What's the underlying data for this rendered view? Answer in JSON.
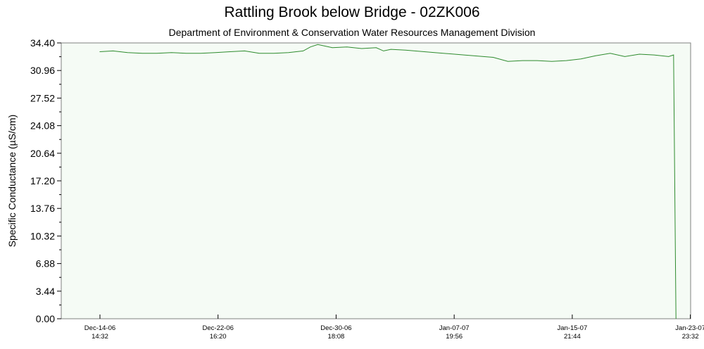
{
  "chart_data": {
    "type": "line",
    "title": "Rattling Brook below Bridge - 02ZK006",
    "subtitle": "Department of Environment & Conservation Water Resources Management Division",
    "ylabel": "Specific Conductance (µS/cm)",
    "xlabel": "",
    "ylim": [
      0,
      34.4
    ],
    "xlim": [
      "2006-12-11 23:00",
      "2007-01-24 00:00"
    ],
    "y_ticks": [
      "34.40",
      "30.96",
      "27.52",
      "24.08",
      "20.64",
      "17.20",
      "13.76",
      "10.32",
      "6.88",
      "3.44",
      "0.00"
    ],
    "x_ticks": [
      {
        "date": "Dec-14-06",
        "time": "14:32",
        "t": "2006-12-14 14:32"
      },
      {
        "date": "Dec-22-06",
        "time": "16:20",
        "t": "2006-12-22 16:20"
      },
      {
        "date": "Dec-30-06",
        "time": "18:08",
        "t": "2006-12-30 18:08"
      },
      {
        "date": "Jan-07-07",
        "time": "19:56",
        "t": "2007-01-07 19:56"
      },
      {
        "date": "Jan-15-07",
        "time": "21:44",
        "t": "2007-01-15 21:44"
      },
      {
        "date": "Jan-23-07",
        "time": "23:32",
        "t": "2007-01-23 23:32"
      }
    ],
    "grid": false,
    "series": [
      {
        "name": "",
        "color": "#2e8b2e",
        "points": [
          [
            "2006-12-14 14:00",
            33.3
          ],
          [
            "2006-12-15 12:00",
            33.4
          ],
          [
            "2006-12-16 12:00",
            33.2
          ],
          [
            "2006-12-17 12:00",
            33.1
          ],
          [
            "2006-12-18 12:00",
            33.1
          ],
          [
            "2006-12-19 12:00",
            33.2
          ],
          [
            "2006-12-20 12:00",
            33.1
          ],
          [
            "2006-12-21 12:00",
            33.1
          ],
          [
            "2006-12-22 12:00",
            33.2
          ],
          [
            "2006-12-23 12:00",
            33.3
          ],
          [
            "2006-12-24 12:00",
            33.4
          ],
          [
            "2006-12-25 12:00",
            33.1
          ],
          [
            "2006-12-26 12:00",
            33.1
          ],
          [
            "2006-12-27 12:00",
            33.2
          ],
          [
            "2006-12-28 12:00",
            33.4
          ],
          [
            "2006-12-29 00:00",
            33.9
          ],
          [
            "2006-12-29 12:00",
            34.2
          ],
          [
            "2006-12-30 12:00",
            33.8
          ],
          [
            "2006-12-31 12:00",
            33.9
          ],
          [
            "2007-01-01 12:00",
            33.7
          ],
          [
            "2007-01-02 12:00",
            33.8
          ],
          [
            "2007-01-03 00:00",
            33.4
          ],
          [
            "2007-01-03 12:00",
            33.6
          ],
          [
            "2007-01-04 12:00",
            33.5
          ],
          [
            "2007-01-06 12:00",
            33.2
          ],
          [
            "2007-01-08 12:00",
            32.9
          ],
          [
            "2007-01-10 12:00",
            32.6
          ],
          [
            "2007-01-11 12:00",
            32.1
          ],
          [
            "2007-01-12 12:00",
            32.2
          ],
          [
            "2007-01-13 12:00",
            32.2
          ],
          [
            "2007-01-14 12:00",
            32.1
          ],
          [
            "2007-01-15 12:00",
            32.2
          ],
          [
            "2007-01-16 12:00",
            32.4
          ],
          [
            "2007-01-17 12:00",
            32.8
          ],
          [
            "2007-01-18 12:00",
            33.1
          ],
          [
            "2007-01-19 12:00",
            32.7
          ],
          [
            "2007-01-20 12:00",
            33.0
          ],
          [
            "2007-01-21 12:00",
            32.9
          ],
          [
            "2007-01-22 12:00",
            32.7
          ],
          [
            "2007-01-22 20:00",
            32.9
          ],
          [
            "2007-01-22 22:00",
            16.2
          ],
          [
            "2007-01-23 00:00",
            0.0
          ]
        ]
      }
    ]
  }
}
